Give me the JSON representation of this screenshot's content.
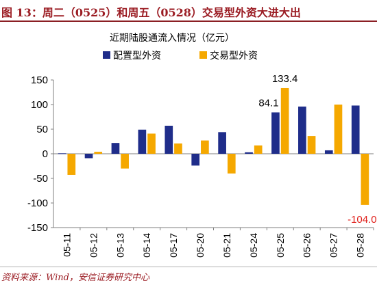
{
  "header": {
    "title": "图 13：周二（0525）和周五（0528）交易型外资大进大出"
  },
  "footer": {
    "source": "资料来源：Wind，安信证券研究中心"
  },
  "colors": {
    "title": "#9b1c23",
    "series_allocation": "#1f2d8a",
    "series_trading": "#f5a800",
    "negative_label": "#e0201b"
  },
  "chart_data": {
    "type": "bar",
    "title": "近期陆股通流入情况（亿元）",
    "categories": [
      "05-11",
      "05-12",
      "05-13",
      "05-14",
      "05-17",
      "05-20",
      "05-21",
      "05-24",
      "05-25",
      "05-26",
      "05-27",
      "05-28"
    ],
    "series": [
      {
        "name": "配置型外资",
        "color": "#1f2d8a",
        "values": [
          1,
          -9,
          22,
          49,
          57,
          -24,
          44,
          3,
          84.1,
          96,
          7,
          98
        ]
      },
      {
        "name": "交易型外资",
        "color": "#f5a800",
        "values": [
          -43,
          4,
          -30,
          41,
          21,
          27,
          -40,
          17,
          133.4,
          36,
          100,
          -104.0
        ]
      }
    ],
    "ylim": [
      -150,
      150
    ],
    "yticks": [
      -150,
      -100,
      -50,
      0,
      50,
      100,
      150
    ],
    "legend": "top",
    "grid": false,
    "annotations": [
      {
        "text": "84.1",
        "category": "05-25",
        "series": 0,
        "color": "#000000"
      },
      {
        "text": "133.4",
        "category": "05-25",
        "series": 1,
        "color": "#000000"
      },
      {
        "text": "-104.0",
        "category": "05-28",
        "series": 1,
        "color": "#e0201b"
      }
    ]
  }
}
